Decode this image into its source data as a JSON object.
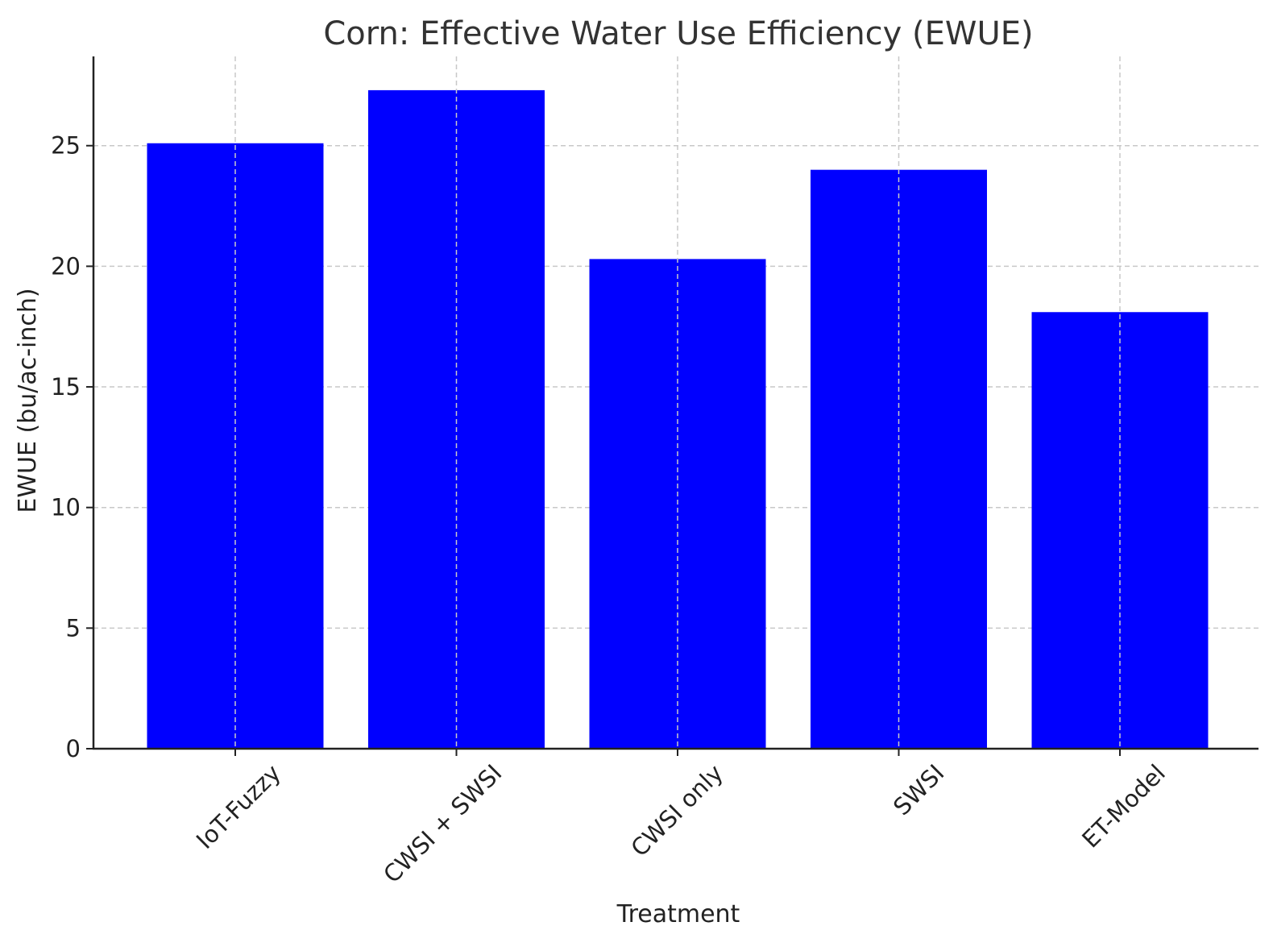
{
  "chart_data": {
    "type": "bar",
    "title": "Corn: Effective Water Use Efficiency (EWUE)",
    "xlabel": "Treatment",
    "ylabel": "EWUE (bu/ac-inch)",
    "categories": [
      "IoT-Fuzzy",
      "CWSI + SWSI",
      "CWSI only",
      "SWSI",
      "ET-Model"
    ],
    "values": [
      25.1,
      27.3,
      20.3,
      24.0,
      18.1
    ],
    "ylim": [
      0,
      28.7
    ],
    "yticks": [
      0,
      5,
      10,
      15,
      20,
      25
    ],
    "grid": true,
    "bar_color": "#0000ff"
  }
}
